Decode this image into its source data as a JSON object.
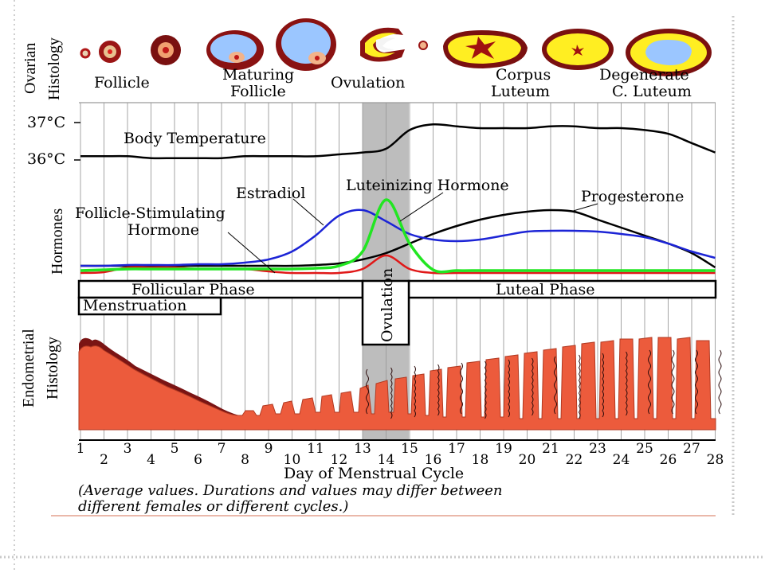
{
  "colors": {
    "grid": "#9a9a9a",
    "band": "#bdbdbd",
    "body_temperature": "#000000",
    "estradiol": "#1c24d6",
    "luteinizing_hormone": "#22e622",
    "fsh": "#e01818",
    "progesterone": "#000000",
    "endometrium": "#ec5b3c",
    "endometrium_dark": "#7a1414",
    "follicle_fluid": "#9bc6ff",
    "follicle_wall": "#9b1515",
    "corpus_luteum": "#ffee22",
    "slide_line": "#e3a08d"
  },
  "ovarian": {
    "side_label_line1": "Ovarian",
    "side_label_line2": "Histology",
    "stages": {
      "follicle": "Follicle",
      "maturing_line1": "Maturing",
      "maturing_line2": "Follicle",
      "ovulation": "Ovulation",
      "corpus_line1": "Corpus",
      "corpus_line2": "Luteum",
      "degenerate_line1": "Degenerate",
      "degenerate_line2": "C. Luteum"
    }
  },
  "temperature": {
    "label": "Body Temperature",
    "tick_high": "37°C",
    "tick_low": "36°C"
  },
  "hormones": {
    "side_label": "Hormones",
    "estradiol": "Estradiol",
    "lh": "Luteinizing Hormone",
    "progesterone": "Progesterone",
    "fsh_line1": "Follicle-Stimulating",
    "fsh_line2": "Hormone"
  },
  "phases": {
    "follicular": "Follicular Phase",
    "luteal": "Luteal Phase",
    "menstruation": "Menstruation",
    "ovulation": "Ovulation"
  },
  "endometrial": {
    "side_label_line1": "Endometrial",
    "side_label_line2": "Histology"
  },
  "days": [
    "1",
    "2",
    "3",
    "4",
    "5",
    "6",
    "7",
    "8",
    "9",
    "10",
    "11",
    "12",
    "13",
    "14",
    "15",
    "16",
    "17",
    "18",
    "19",
    "20",
    "21",
    "22",
    "23",
    "24",
    "25",
    "26",
    "27",
    "28"
  ],
  "axis_title": "Day of Menstrual Cycle",
  "note_line1": "(Average values. Durations and values may differ between",
  "note_line2": "different females or different cycles.)",
  "chart_data": {
    "type": "line",
    "x": [
      1,
      2,
      3,
      4,
      5,
      6,
      7,
      8,
      9,
      10,
      11,
      12,
      13,
      14,
      15,
      16,
      17,
      18,
      19,
      20,
      21,
      22,
      23,
      24,
      25,
      26,
      27,
      28
    ],
    "xlabel": "Day of Menstrual Cycle",
    "series": [
      {
        "name": "Body Temperature",
        "values": [
          36.1,
          36.1,
          36.1,
          36.05,
          36.05,
          36.05,
          36.05,
          36.1,
          36.1,
          36.1,
          36.1,
          36.15,
          36.2,
          36.3,
          36.8,
          36.95,
          36.9,
          36.85,
          36.85,
          36.85,
          36.9,
          36.9,
          36.85,
          36.85,
          36.8,
          36.7,
          36.45,
          36.2
        ]
      },
      {
        "name": "Estradiol",
        "values": [
          0.12,
          0.12,
          0.13,
          0.13,
          0.13,
          0.14,
          0.14,
          0.16,
          0.2,
          0.3,
          0.5,
          0.75,
          0.82,
          0.68,
          0.52,
          0.45,
          0.43,
          0.45,
          0.5,
          0.55,
          0.56,
          0.56,
          0.55,
          0.52,
          0.48,
          0.4,
          0.3,
          0.22
        ]
      },
      {
        "name": "Luteinizing Hormone",
        "values": [
          0.06,
          0.07,
          0.08,
          0.08,
          0.08,
          0.08,
          0.08,
          0.08,
          0.08,
          0.08,
          0.09,
          0.12,
          0.3,
          0.95,
          0.4,
          0.07,
          0.06,
          0.06,
          0.06,
          0.06,
          0.06,
          0.06,
          0.06,
          0.06,
          0.06,
          0.06,
          0.06,
          0.06
        ]
      },
      {
        "name": "Follicle-Stimulating Hormone",
        "values": [
          0.03,
          0.04,
          0.1,
          0.1,
          0.1,
          0.08,
          0.08,
          0.08,
          0.05,
          0.03,
          0.03,
          0.03,
          0.08,
          0.25,
          0.08,
          0.03,
          0.03,
          0.03,
          0.03,
          0.03,
          0.03,
          0.03,
          0.03,
          0.03,
          0.03,
          0.03,
          0.03,
          0.03
        ]
      },
      {
        "name": "Progesterone",
        "values": [
          0.12,
          0.12,
          0.12,
          0.12,
          0.12,
          0.12,
          0.12,
          0.12,
          0.12,
          0.12,
          0.13,
          0.15,
          0.2,
          0.28,
          0.4,
          0.52,
          0.62,
          0.7,
          0.76,
          0.8,
          0.82,
          0.8,
          0.7,
          0.6,
          0.5,
          0.4,
          0.28,
          0.1
        ]
      }
    ]
  }
}
